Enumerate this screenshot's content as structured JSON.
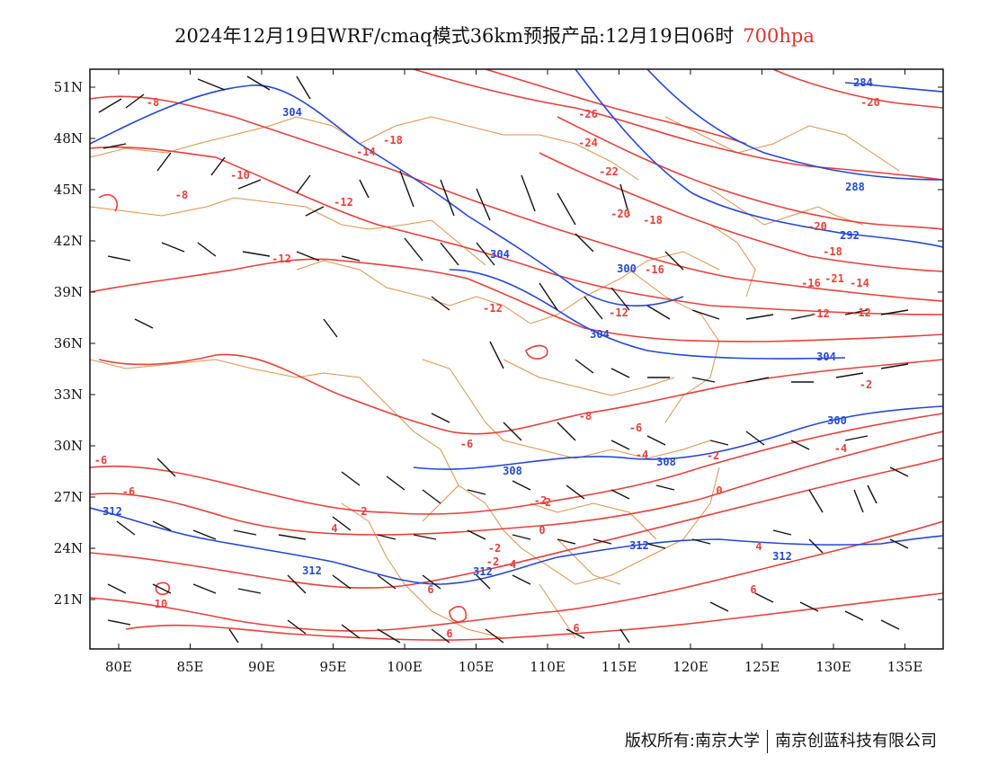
{
  "title": {
    "text": "2024年12月19日WRF/cmaq模式36km预报产品:12月19日06时",
    "level": "700hpa"
  },
  "axes": {
    "x_ticks": [
      "80E",
      "85E",
      "90E",
      "95E",
      "100E",
      "105E",
      "110E",
      "115E",
      "120E",
      "125E",
      "130E",
      "135E"
    ],
    "y_ticks": [
      "51N",
      "48N",
      "45N",
      "42N",
      "39N",
      "36N",
      "33N",
      "30N",
      "27N",
      "24N",
      "21N"
    ]
  },
  "contour_labels": {
    "red": [
      "-8",
      "-26",
      "-20",
      "-18",
      "-10",
      "-14",
      "-24",
      "-22",
      "-8",
      "-12",
      "-20",
      "-18",
      "-20",
      "-12",
      "-18",
      "-16",
      "-16",
      "-21",
      "-14",
      "-12",
      "-12",
      "-12",
      "-12",
      "-8",
      "-6",
      "-6",
      "-4",
      "-2",
      "-6",
      "-6",
      "-2",
      "-4",
      "-2",
      "0",
      "0",
      "-2",
      "2",
      "4",
      "-2",
      "-4",
      "-2",
      "4",
      "6",
      "6",
      "6",
      "10",
      "6"
    ],
    "blue": [
      "304",
      "284",
      "288",
      "292",
      "304",
      "300",
      "304",
      "304",
      "300",
      "308",
      "308",
      "312",
      "312",
      "312",
      "312",
      "312"
    ]
  },
  "colors": {
    "temperature": "#e8403a",
    "height": "#2447d8",
    "border": "#e0904a",
    "wind": "#111111"
  },
  "footer": {
    "left": "版权所有:南京大学",
    "right": "南京创蓝科技有限公司"
  }
}
